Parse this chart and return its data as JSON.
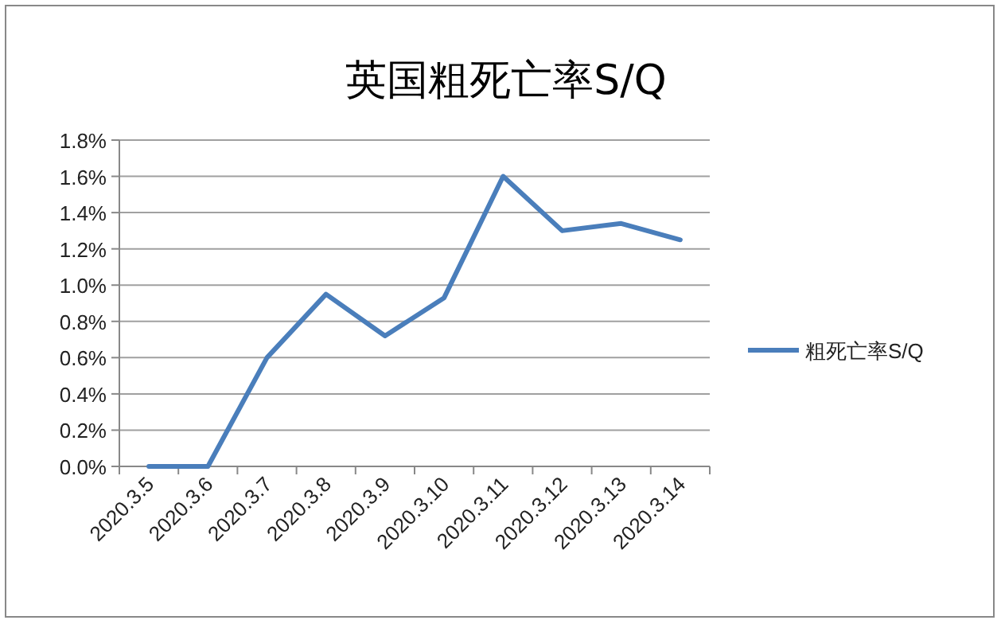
{
  "chart_data": {
    "type": "line",
    "title": "英国粗死亡率S/Q",
    "categories": [
      "2020.3.5",
      "2020.3.6",
      "2020.3.7",
      "2020.3.8",
      "2020.3.9",
      "2020.3.10",
      "2020.3.11",
      "2020.3.12",
      "2020.3.13",
      "2020.3.14"
    ],
    "series": [
      {
        "name": "粗死亡率S/Q",
        "color": "#4a7ebb",
        "values": [
          0,
          0,
          0.6,
          0.95,
          0.72,
          0.93,
          1.6,
          1.3,
          1.34,
          1.25
        ]
      }
    ],
    "ylim": [
      0,
      1.8
    ],
    "yticks": [
      {
        "value": 0,
        "label": "0.0%"
      },
      {
        "value": 0.2,
        "label": "0.2%"
      },
      {
        "value": 0.4,
        "label": "0.4%"
      },
      {
        "value": 0.6,
        "label": "0.6%"
      },
      {
        "value": 0.8,
        "label": "0.8%"
      },
      {
        "value": 1.0,
        "label": "1.0%"
      },
      {
        "value": 1.2,
        "label": "1.2%"
      },
      {
        "value": 1.4,
        "label": "1.4%"
      },
      {
        "value": 1.6,
        "label": "1.6%"
      },
      {
        "value": 1.8,
        "label": "1.8%"
      }
    ],
    "grid": "y",
    "legend": "right",
    "marker": "none",
    "line_style": "solid"
  }
}
